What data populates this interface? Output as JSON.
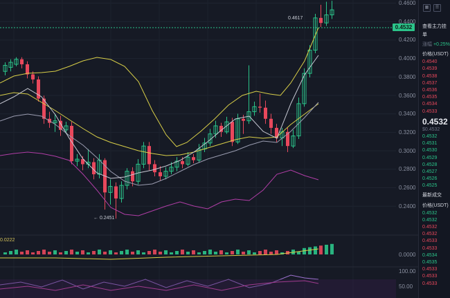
{
  "chart": {
    "price_axis_labels": [
      "0.4600",
      "0.4400",
      "0.4200",
      "0.4000",
      "0.3800",
      "0.3600",
      "0.3400",
      "0.3200",
      "0.3000",
      "0.2800",
      "0.2600",
      "0.2400"
    ],
    "current_price_tag": "0.4532",
    "high_annotation": "0.4617",
    "low_annotation": "← 0.2451",
    "volume_label": "0.0222",
    "volume_axis_label": "0.0000",
    "osc_axis_labels": [
      "100.00",
      "50.00"
    ],
    "colors": {
      "up": "#2bc48a",
      "down": "#e8485c",
      "ma_yellow": "#d9cf48",
      "ma_white": "#b9bcc8",
      "ma_purple": "#b13ea7",
      "background": "#161a25"
    }
  },
  "panel": {
    "tab_icons": [
      "grid-icon",
      "list-icon"
    ],
    "header": "查看主力挂单",
    "change_label": "涨幅",
    "change_value": "+0.25%",
    "price_header": "价格(USDT)",
    "asks": [
      "0.4540",
      "0.4539",
      "0.4538",
      "0.4537",
      "0.4536",
      "0.4535",
      "0.4534",
      "0.4533"
    ],
    "last_price": "0.4532",
    "last_price_sub": "$0.4532",
    "bids": [
      "0.4532",
      "0.4531",
      "0.4530",
      "0.4529",
      "0.4528",
      "0.4527",
      "0.4526",
      "0.4525"
    ],
    "trades_title": "最新成交",
    "trades_header": "价格(USDT)",
    "trades": [
      {
        "p": "0.4532",
        "c": "green"
      },
      {
        "p": "0.4532",
        "c": "green"
      },
      {
        "p": "0.4532",
        "c": "red"
      },
      {
        "p": "0.4532",
        "c": "red"
      },
      {
        "p": "0.4533",
        "c": "red"
      },
      {
        "p": "0.4533",
        "c": "red"
      },
      {
        "p": "0.4534",
        "c": "green"
      },
      {
        "p": "0.4535",
        "c": "green"
      },
      {
        "p": "0.4533",
        "c": "red"
      },
      {
        "p": "0.4533",
        "c": "red"
      },
      {
        "p": "0.4533",
        "c": "red"
      }
    ]
  }
}
